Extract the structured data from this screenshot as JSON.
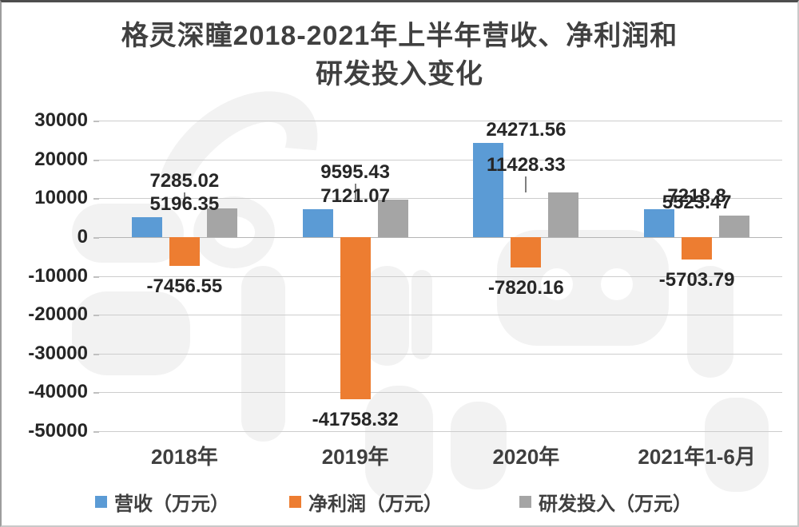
{
  "title": {
    "line1": "格灵深瞳2018-2021年上半年营收、净利润和",
    "line2": "研发投入变化"
  },
  "chart_data": {
    "type": "bar",
    "title": "格灵深瞳2018-2021年上半年营收、净利润和研发投入变化",
    "categories": [
      "2018年",
      "2019年",
      "2020年",
      "2021年1-6月"
    ],
    "series": [
      {
        "name": "营收（万元）",
        "key": "revenue",
        "color": "#5B9BD5",
        "values": [
          5196.35,
          7121.07,
          24271.56,
          7218.8
        ]
      },
      {
        "name": "净利润（万元）",
        "key": "net-profit",
        "color": "#ED7D31",
        "values": [
          -7456.55,
          -41758.32,
          -7820.16,
          -5703.79
        ]
      },
      {
        "name": "研发投入（万元）",
        "key": "rd-invest",
        "color": "#A5A5A5",
        "values": [
          7285.02,
          9595.43,
          11428.33,
          5523.47
        ],
        "label_leader": [
          true,
          true,
          true,
          false
        ]
      }
    ],
    "ylim": [
      -50000,
      30000
    ],
    "y_ticks": [
      30000,
      20000,
      10000,
      0,
      -10000,
      -20000,
      -30000,
      -40000,
      -50000
    ],
    "grid": true,
    "legend_position": "bottom",
    "colors": {
      "grid": "#cdcdcd",
      "zero_line": "#b5b5b5",
      "value_text": "#262626",
      "axis_text": "#3f3f3f",
      "leader_line": "#7f7f7f",
      "title_text": "#404040"
    }
  }
}
